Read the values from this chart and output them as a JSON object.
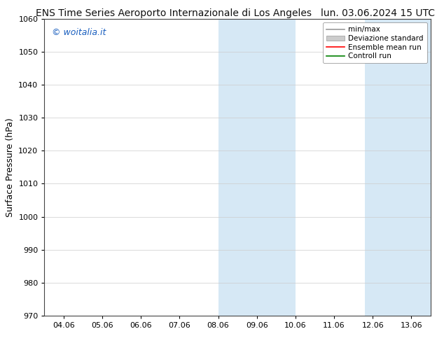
{
  "title_left": "ENS Time Series Aeroporto Internazionale di Los Angeles",
  "title_right": "lun. 03.06.2024 15 UTC",
  "ylabel": "Surface Pressure (hPa)",
  "ylim": [
    970,
    1060
  ],
  "yticks": [
    970,
    980,
    990,
    1000,
    1010,
    1020,
    1030,
    1040,
    1050,
    1060
  ],
  "xtick_labels": [
    "04.06",
    "05.06",
    "06.06",
    "07.06",
    "08.06",
    "09.06",
    "10.06",
    "11.06",
    "12.06",
    "13.06"
  ],
  "xtick_positions": [
    0,
    1,
    2,
    3,
    4,
    5,
    6,
    7,
    8,
    9
  ],
  "xlim": [
    -0.5,
    9.5
  ],
  "shaded_regions": [
    {
      "xmin": 4.0,
      "xmax": 6.0
    },
    {
      "xmin": 7.8,
      "xmax": 9.5
    }
  ],
  "shade_color": "#d6e8f5",
  "watermark": "© woitalia.it",
  "watermark_color": "#1a5fbf",
  "legend_entries": [
    {
      "label": "min/max",
      "color": "#999999",
      "lw": 1.2,
      "type": "line"
    },
    {
      "label": "Deviazione standard",
      "color": "#cccccc",
      "type": "patch"
    },
    {
      "label": "Ensemble mean run",
      "color": "red",
      "lw": 1.2,
      "type": "line"
    },
    {
      "label": "Controll run",
      "color": "green",
      "lw": 1.2,
      "type": "line"
    }
  ],
  "bg_color": "#ffffff",
  "grid_color": "#cccccc",
  "title_fontsize": 10,
  "ylabel_fontsize": 9,
  "tick_fontsize": 8,
  "legend_fontsize": 7.5,
  "watermark_fontsize": 9
}
